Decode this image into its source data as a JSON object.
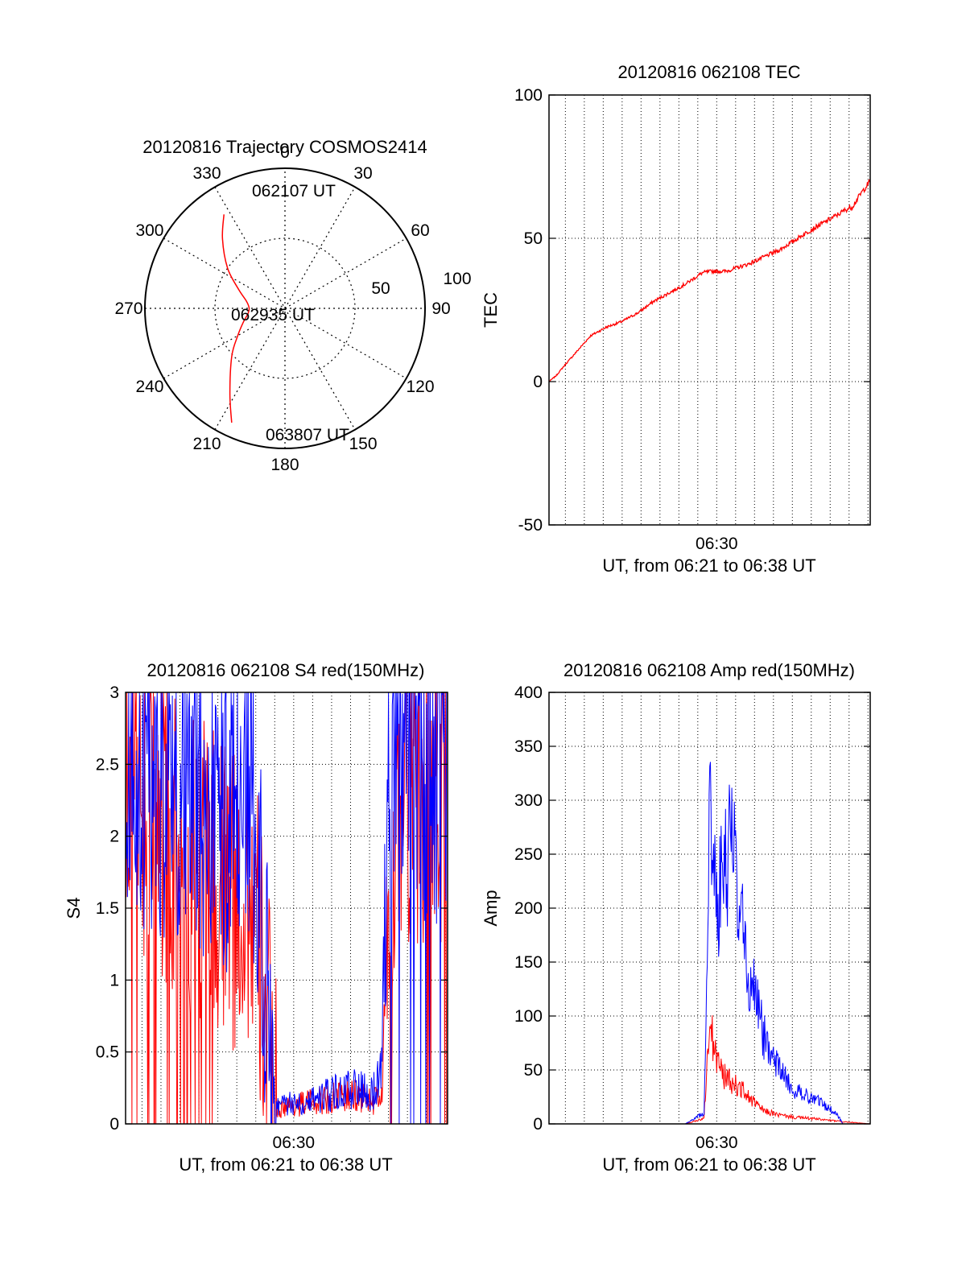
{
  "chart_data": [
    {
      "type": "polar",
      "title": "20120816 Trajectory COSMOS2414",
      "azimuth_labels": [
        "0",
        "30",
        "60",
        "90",
        "120",
        "150",
        "180",
        "210",
        "240",
        "270",
        "300",
        "330"
      ],
      "radial_labels": [
        "50",
        "100"
      ],
      "annotations": [
        "062107 UT",
        "062935 UT",
        "063807 UT"
      ],
      "color": "#ff0000",
      "trajectory_azimuth_elevation": [
        [
          327,
          18
        ],
        [
          318,
          30
        ],
        [
          305,
          45
        ],
        [
          292,
          58
        ],
        [
          280,
          65
        ],
        [
          270,
          67
        ],
        [
          262,
          66
        ],
        [
          252,
          62
        ],
        [
          240,
          55
        ],
        [
          228,
          44
        ],
        [
          213,
          25
        ],
        [
          205,
          9
        ]
      ]
    },
    {
      "type": "line",
      "title": "20120816 062108 TEC",
      "xlabel": "UT, from 06:21 to 06:38 UT",
      "ylabel": "TEC",
      "xtick_labels": [
        "06:30"
      ],
      "ytick_labels": [
        "-50",
        "0",
        "50",
        "100"
      ],
      "ylim": [
        -50,
        100
      ],
      "xlim_seconds": [
        1268,
        2287
      ],
      "grid": true,
      "series": [
        {
          "color": "#ff0000",
          "x_seconds": [
            1268,
            1290,
            1320,
            1360,
            1400,
            1450,
            1500,
            1550,
            1600,
            1650,
            1700,
            1755,
            1785,
            1830,
            1900,
            2000,
            2100,
            2180,
            2210,
            2230,
            2260,
            2287
          ],
          "y": [
            0,
            2,
            6,
            11,
            16,
            19,
            21,
            24,
            28,
            31,
            34,
            38,
            38.5,
            38.5,
            41,
            46,
            53,
            58,
            60,
            61,
            66,
            70
          ]
        }
      ]
    },
    {
      "type": "line",
      "title": "20120816 062108 S4 red(150MHz)",
      "xlabel": "UT, from 06:21 to 06:38 UT",
      "ylabel": "S4",
      "xtick_labels": [
        "06:30"
      ],
      "ytick_labels": [
        "0",
        "0.5",
        "1",
        "1.5",
        "2",
        "2.5",
        "3"
      ],
      "ylim": [
        0,
        3
      ],
      "xlim_seconds": [
        1268,
        2287
      ],
      "grid": true,
      "series": [
        {
          "color": "#ff0000",
          "x_seconds": [
            1268,
            1350,
            1450,
            1550,
            1620,
            1660,
            1680,
            1700,
            1740,
            1800,
            1900,
            2000,
            2050,
            2080,
            2100,
            2140,
            2287
          ],
          "y": [
            2.3,
            2.1,
            1.9,
            1.7,
            1.5,
            1.6,
            1.3,
            1.0,
            0.1,
            0.13,
            0.17,
            0.2,
            0.15,
            0.2,
            1.5,
            2.5,
            2.8
          ]
        },
        {
          "color": "#0000ff",
          "x_seconds": [
            1268,
            1350,
            1450,
            1550,
            1620,
            1660,
            1680,
            1700,
            1740,
            1800,
            1900,
            2000,
            2050,
            2080,
            2100,
            2140,
            2287
          ],
          "y": [
            2.5,
            2.4,
            2.3,
            2.2,
            2.1,
            2.4,
            2.0,
            1.5,
            0.12,
            0.15,
            0.2,
            0.25,
            0.22,
            0.4,
            2.6,
            3.0,
            3.0
          ]
        }
      ]
    },
    {
      "type": "line",
      "title": "20120816 062108 Amp red(150MHz)",
      "xlabel": "UT, from 06:21 to 06:38 UT",
      "ylabel": "Amp",
      "xtick_labels": [
        "06:30"
      ],
      "ytick_labels": [
        "0",
        "50",
        "100",
        "150",
        "200",
        "250",
        "300",
        "350",
        "400"
      ],
      "ylim": [
        0,
        400
      ],
      "xlim_seconds": [
        1268,
        2287
      ],
      "grid": true,
      "series": [
        {
          "color": "#ff0000",
          "x_seconds": [
            1268,
            1700,
            1760,
            1770,
            1780,
            1790,
            1800,
            1820,
            1850,
            1880,
            1910,
            1950,
            2000,
            2050,
            2100,
            2200,
            2287
          ],
          "y": [
            0,
            0,
            5,
            60,
            85,
            75,
            60,
            45,
            38,
            32,
            22,
            12,
            8,
            6,
            5,
            2,
            0
          ]
        },
        {
          "color": "#0000ff",
          "x_seconds": [
            1268,
            1700,
            1760,
            1770,
            1780,
            1790,
            1800,
            1820,
            1850,
            1880,
            1910,
            1950,
            2000,
            2050,
            2100,
            2180,
            2200,
            2287
          ],
          "y": [
            0,
            0,
            10,
            190,
            280,
            250,
            200,
            240,
            270,
            180,
            130,
            80,
            50,
            30,
            25,
            10,
            0,
            0
          ]
        }
      ]
    }
  ]
}
